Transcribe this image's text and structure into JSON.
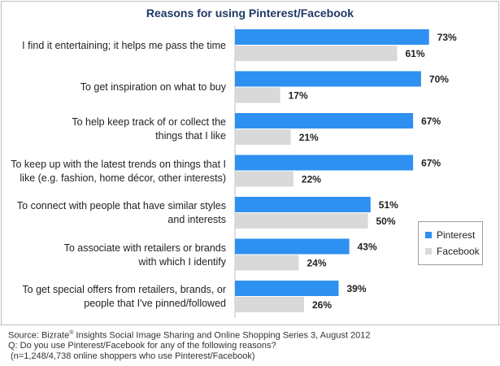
{
  "chart_data": {
    "type": "bar",
    "orientation": "horizontal",
    "title": "Reasons for using Pinterest/Facebook",
    "categories": [
      [
        "I find it entertaining; it helps me pass the time"
      ],
      [
        "To get inspiration on what to buy"
      ],
      [
        "To help keep track of or collect the",
        "things that I like"
      ],
      [
        "To keep up with the latest trends on things that I",
        "like (e.g. fashion, home décor, other interests)"
      ],
      [
        "To connect with people that have similar styles",
        "and interests"
      ],
      [
        "To associate with retailers or brands",
        "with which I identify"
      ],
      [
        "To get special offers from retailers, brands, or",
        "people that I've pinned/followed"
      ]
    ],
    "series": [
      {
        "name": "Pinterest",
        "color": "#2e90f0",
        "values": [
          73,
          70,
          67,
          67,
          51,
          43,
          39
        ]
      },
      {
        "name": "Facebook",
        "color": "#d9d9d9",
        "values": [
          61,
          17,
          21,
          22,
          50,
          24,
          26
        ]
      }
    ],
    "value_suffix": "%",
    "xlim": [
      0,
      100
    ],
    "grid": false,
    "legend_position": "right"
  },
  "footer": {
    "source_prefix": "Source: Bizrate",
    "source_mark": "®",
    "source_rest": " Insights Social Image Sharing and Online Shopping Series 3, August 2012",
    "question": "Q: Do you use Pinterest/Facebook for any of the following reasons?",
    "sample": "(n=1,248/4,738 online shoppers who use Pinterest/Facebook)"
  }
}
